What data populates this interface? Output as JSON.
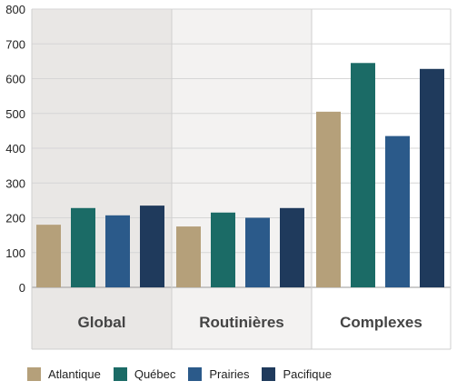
{
  "chart_data": {
    "type": "bar",
    "categories": [
      "Global",
      "Routinières",
      "Complexes"
    ],
    "series": [
      {
        "name": "Atlantique",
        "color": "#b5a07a",
        "values": [
          180,
          175,
          505
        ]
      },
      {
        "name": "Québec",
        "color": "#1b6b66",
        "values": [
          228,
          215,
          645
        ]
      },
      {
        "name": "Prairies",
        "color": "#2b5a8a",
        "values": [
          207,
          200,
          435
        ]
      },
      {
        "name": "Pacifique",
        "color": "#1f3a5c",
        "values": [
          235,
          228,
          628
        ]
      }
    ],
    "y_ticks": [
      "0",
      "100",
      "200",
      "300",
      "400",
      "500",
      "600",
      "700",
      "800"
    ],
    "ylim": [
      0,
      800
    ],
    "title": "",
    "xlabel": "",
    "ylabel": "",
    "grid": true,
    "legend_position": "bottom",
    "group_backgrounds": [
      "#e9e7e5",
      "#f3f2f1",
      "#ffffff"
    ]
  }
}
